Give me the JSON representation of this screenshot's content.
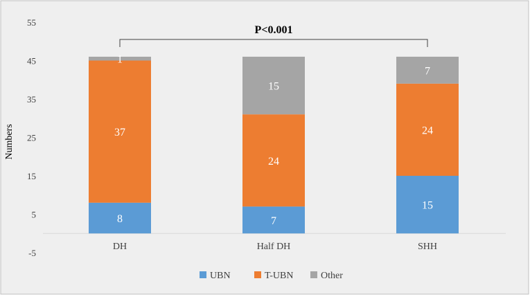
{
  "chart_data": {
    "type": "bar",
    "stacked": true,
    "categories": [
      "DH",
      "Half DH",
      "SHH"
    ],
    "series": [
      {
        "name": "UBN",
        "values": [
          8,
          7,
          15
        ],
        "color": "#5B9BD5"
      },
      {
        "name": "T-UBN",
        "values": [
          37,
          24,
          24
        ],
        "color": "#ED7D31"
      },
      {
        "name": "Other",
        "values": [
          1,
          15,
          7
        ],
        "color": "#A5A5A5"
      }
    ],
    "data_labels": [
      [
        "8",
        "37",
        "1"
      ],
      [
        "7",
        "24",
        "15"
      ],
      [
        "15",
        "24",
        "7"
      ]
    ],
    "ylabel": "Numbers",
    "xlabel": "",
    "title": "",
    "ylim": [
      -5,
      55
    ],
    "yticks": [
      55,
      45,
      35,
      25,
      15,
      5,
      -5
    ],
    "ytick_labels": [
      "55",
      "45",
      "35",
      "25",
      "15",
      "5",
      "-5"
    ],
    "annotation": {
      "text": "P<0.001",
      "from_category": 0,
      "to_category": 2
    },
    "grid": false,
    "legend_position": "bottom",
    "background_color": "#EFEFEF",
    "frame_color": "#BFBFBF"
  }
}
